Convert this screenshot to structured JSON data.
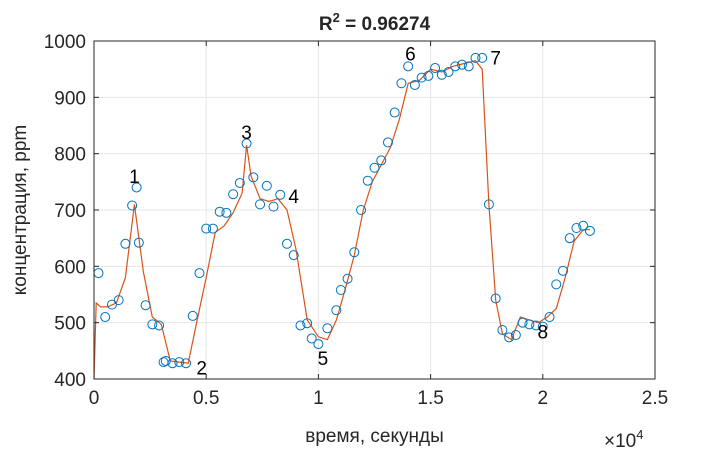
{
  "chart_data": {
    "type": "scatter",
    "title_main": "R",
    "title_sup": "2",
    "title_rest": " = 0.96274",
    "xlabel": "время, секунды",
    "ylabel": "концентрация, ppm",
    "x_multiplier_base": "×10",
    "x_multiplier_exp": "4",
    "xlim": [
      0,
      2.5
    ],
    "ylim": [
      400,
      1000
    ],
    "xticks": [
      0,
      0.5,
      1,
      1.5,
      2,
      2.5
    ],
    "xtick_labels": [
      "0",
      "0.5",
      "1",
      "1.5",
      "2",
      "2.5"
    ],
    "yticks": [
      400,
      500,
      600,
      700,
      800,
      900,
      1000
    ],
    "ytick_labels": [
      "400",
      "500",
      "600",
      "700",
      "800",
      "900",
      "1000"
    ],
    "grid": true,
    "colors": {
      "line": "#d95319",
      "markers": "#0072bd"
    },
    "series": [
      {
        "type": "line",
        "x": [
          0,
          0.01,
          0.03,
          0.06,
          0.1,
          0.14,
          0.18,
          0.22,
          0.26,
          0.3,
          0.34,
          0.38,
          0.42,
          0.46,
          0.5,
          0.54,
          0.58,
          0.62,
          0.66,
          0.68,
          0.7,
          0.74,
          0.78,
          0.82,
          0.86,
          0.9,
          0.95,
          1.0,
          1.04,
          1.08,
          1.12,
          1.16,
          1.2,
          1.24,
          1.28,
          1.32,
          1.36,
          1.4,
          1.45,
          1.5,
          1.55,
          1.6,
          1.65,
          1.7,
          1.73,
          1.76,
          1.79,
          1.82,
          1.86,
          1.9,
          1.94,
          1.98,
          2.02,
          2.06,
          2.1,
          2.14,
          2.18,
          2.21
        ],
        "y": [
          400,
          535,
          528,
          528,
          535,
          580,
          710,
          590,
          510,
          497,
          432,
          430,
          428,
          505,
          580,
          660,
          672,
          695,
          730,
          815,
          760,
          720,
          715,
          720,
          700,
          630,
          505,
          475,
          470,
          505,
          560,
          620,
          700,
          750,
          780,
          810,
          860,
          925,
          930,
          950,
          945,
          955,
          960,
          965,
          950,
          710,
          540,
          480,
          470,
          510,
          505,
          500,
          510,
          525,
          580,
          645,
          665,
          665
        ]
      },
      {
        "type": "scatter",
        "x": [
          0.02,
          0.05,
          0.08,
          0.11,
          0.14,
          0.17,
          0.19,
          0.2,
          0.23,
          0.26,
          0.29,
          0.31,
          0.32,
          0.35,
          0.38,
          0.41,
          0.44,
          0.47,
          0.5,
          0.53,
          0.56,
          0.59,
          0.62,
          0.65,
          0.68,
          0.71,
          0.74,
          0.77,
          0.8,
          0.83,
          0.86,
          0.89,
          0.92,
          0.95,
          0.97,
          1.0,
          1.04,
          1.08,
          1.1,
          1.13,
          1.16,
          1.19,
          1.22,
          1.25,
          1.28,
          1.31,
          1.34,
          1.37,
          1.4,
          1.43,
          1.46,
          1.49,
          1.52,
          1.55,
          1.58,
          1.61,
          1.64,
          1.67,
          1.7,
          1.73,
          1.76,
          1.79,
          1.82,
          1.85,
          1.88,
          1.91,
          1.94,
          1.97,
          2.0,
          2.03,
          2.06,
          2.09,
          2.12,
          2.15,
          2.18,
          2.21
        ],
        "y": [
          588,
          510,
          532,
          540,
          640,
          708,
          740,
          642,
          531,
          497,
          495,
          430,
          432,
          428,
          430,
          428,
          512,
          588,
          667,
          667,
          697,
          695,
          728,
          748,
          818,
          758,
          710,
          743,
          706,
          727,
          640,
          620,
          495,
          499,
          472,
          462,
          490,
          522,
          558,
          578,
          625,
          700,
          752,
          775,
          788,
          820,
          873,
          925,
          955,
          922,
          935,
          938,
          952,
          940,
          945,
          955,
          958,
          955,
          970,
          970,
          710,
          543,
          487,
          474,
          478,
          500,
          497,
          495,
          493,
          510,
          568,
          592,
          650,
          668,
          672,
          663
        ]
      }
    ],
    "annotations": [
      {
        "text": "1",
        "x": 0.18,
        "y": 748
      },
      {
        "text": "2",
        "x": 0.48,
        "y": 408
      },
      {
        "text": "3",
        "x": 0.68,
        "y": 826
      },
      {
        "text": "4",
        "x": 0.89,
        "y": 712
      },
      {
        "text": "5",
        "x": 1.02,
        "y": 425
      },
      {
        "text": "6",
        "x": 1.41,
        "y": 965
      },
      {
        "text": "7",
        "x": 1.79,
        "y": 958
      },
      {
        "text": "8",
        "x": 2.0,
        "y": 472
      }
    ]
  }
}
